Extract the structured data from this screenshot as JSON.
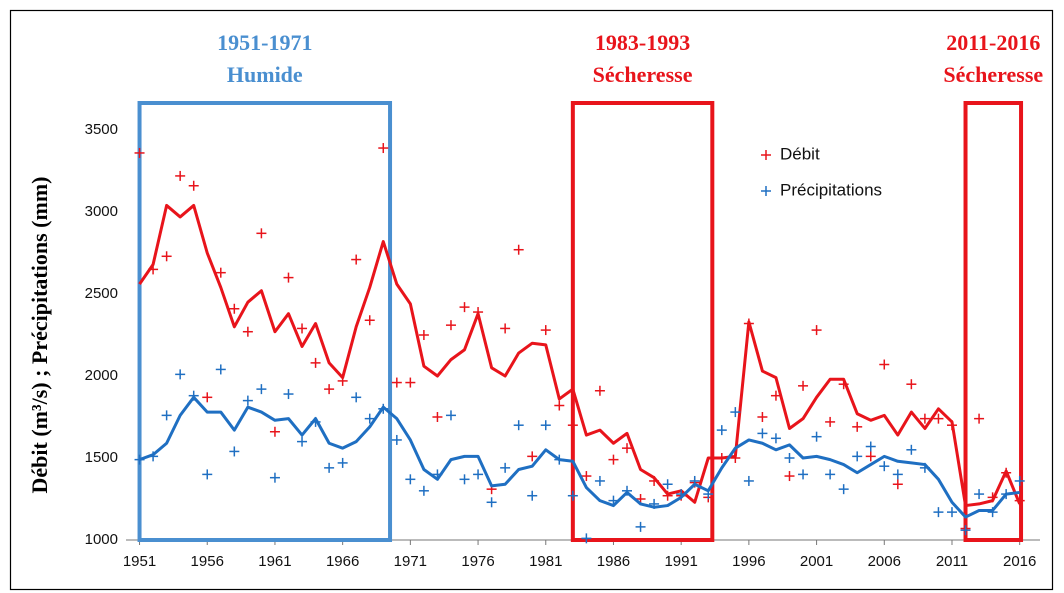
{
  "chart_data": {
    "type": "scatter",
    "ylabel": "Débit (m³/s) ; Précipitations (mm)",
    "x": [
      1951,
      1952,
      1953,
      1954,
      1955,
      1956,
      1957,
      1958,
      1959,
      1960,
      1961,
      1962,
      1963,
      1964,
      1965,
      1966,
      1967,
      1968,
      1969,
      1970,
      1971,
      1972,
      1973,
      1974,
      1975,
      1976,
      1977,
      1978,
      1979,
      1980,
      1981,
      1982,
      1983,
      1984,
      1985,
      1986,
      1987,
      1988,
      1989,
      1990,
      1991,
      1992,
      1993,
      1994,
      1995,
      1996,
      1997,
      1998,
      1999,
      2000,
      2001,
      2002,
      2003,
      2004,
      2005,
      2006,
      2007,
      2008,
      2009,
      2010,
      2011,
      2012,
      2013,
      2014,
      2015,
      2016
    ],
    "series": [
      {
        "name": "Débit",
        "color": "#e8141b",
        "values": [
          3360,
          2650,
          2730,
          3220,
          3160,
          1870,
          2630,
          2410,
          2270,
          2870,
          1660,
          2600,
          2290,
          2080,
          1920,
          1970,
          2710,
          2340,
          3390,
          1960,
          1960,
          2250,
          1750,
          2310,
          2420,
          2390,
          1310,
          2290,
          2770,
          1510,
          2280,
          1820,
          1700,
          1390,
          1910,
          1490,
          1560,
          1250,
          1360,
          1270,
          1270,
          1350,
          1260,
          1500,
          1500,
          2320,
          1750,
          1880,
          1390,
          1940,
          2280,
          1720,
          1950,
          1690,
          1510,
          2070,
          1340,
          1950,
          1740,
          1740,
          1700,
          1070,
          1740,
          1260,
          1410,
          1240
        ],
        "trend": [
          2560,
          2680,
          3040,
          2970,
          3040,
          2750,
          2540,
          2300,
          2450,
          2520,
          2270,
          2380,
          2180,
          2320,
          2080,
          1990,
          2300,
          2540,
          2820,
          2560,
          2440,
          2060,
          2000,
          2100,
          2160,
          2380,
          2050,
          2000,
          2140,
          2200,
          2190,
          1860,
          1920,
          1640,
          1670,
          1590,
          1650,
          1430,
          1380,
          1280,
          1300,
          1230,
          1500,
          1500,
          1510,
          2330,
          2030,
          1990,
          1680,
          1740,
          1870,
          1980,
          1980,
          1770,
          1730,
          1760,
          1640,
          1780,
          1680,
          1800,
          1720,
          1210,
          1220,
          1240,
          1420,
          1220
        ]
      },
      {
        "name": "Précipitations",
        "color": "#1f6fc2",
        "values": [
          1490,
          1510,
          1760,
          2010,
          1880,
          1400,
          2040,
          1540,
          1850,
          1920,
          1380,
          1890,
          1600,
          1720,
          1440,
          1470,
          1870,
          1740,
          1800,
          1610,
          1370,
          1300,
          1400,
          1760,
          1370,
          1400,
          1230,
          1440,
          1700,
          1270,
          1700,
          1490,
          1270,
          1010,
          1360,
          1240,
          1300,
          1080,
          1220,
          1340,
          1280,
          1360,
          1280,
          1670,
          1780,
          1360,
          1650,
          1620,
          1500,
          1400,
          1630,
          1400,
          1310,
          1510,
          1570,
          1450,
          1400,
          1550,
          1440,
          1170,
          1170,
          1060,
          1280,
          1170,
          1280,
          1360
        ],
        "trend": [
          1490,
          1520,
          1590,
          1760,
          1870,
          1780,
          1780,
          1670,
          1810,
          1780,
          1730,
          1740,
          1640,
          1740,
          1590,
          1560,
          1600,
          1690,
          1810,
          1740,
          1610,
          1430,
          1370,
          1490,
          1510,
          1510,
          1330,
          1340,
          1430,
          1450,
          1550,
          1490,
          1480,
          1320,
          1240,
          1210,
          1290,
          1220,
          1200,
          1210,
          1260,
          1340,
          1300,
          1440,
          1560,
          1610,
          1590,
          1550,
          1580,
          1500,
          1510,
          1490,
          1460,
          1410,
          1460,
          1510,
          1480,
          1470,
          1460,
          1370,
          1230,
          1140,
          1180,
          1180,
          1280,
          1290
        ]
      }
    ],
    "periods": [
      {
        "label": "1951-1971",
        "sublabel": "Humide",
        "color": "#4a8fd0",
        "span": [
          1951,
          1969.5
        ]
      },
      {
        "label": "1983-1993",
        "sublabel": "Sécheresse",
        "color": "#e8141b",
        "span": [
          1983,
          1993.3
        ]
      },
      {
        "label": "2011-2016",
        "sublabel": "Sécheresse",
        "color": "#e8141b",
        "span": [
          2012,
          2016.1
        ]
      }
    ],
    "xlim": [
      1950,
      2017.5
    ],
    "xticks": [
      1951,
      1956,
      1961,
      1966,
      1971,
      1976,
      1981,
      1986,
      1991,
      1996,
      2001,
      2006,
      2011,
      2016
    ],
    "ylim": [
      1000,
      3500
    ],
    "yticks": [
      1000,
      1500,
      2000,
      2500,
      3000,
      3500
    ],
    "grid": false,
    "legend": "upper-right"
  }
}
